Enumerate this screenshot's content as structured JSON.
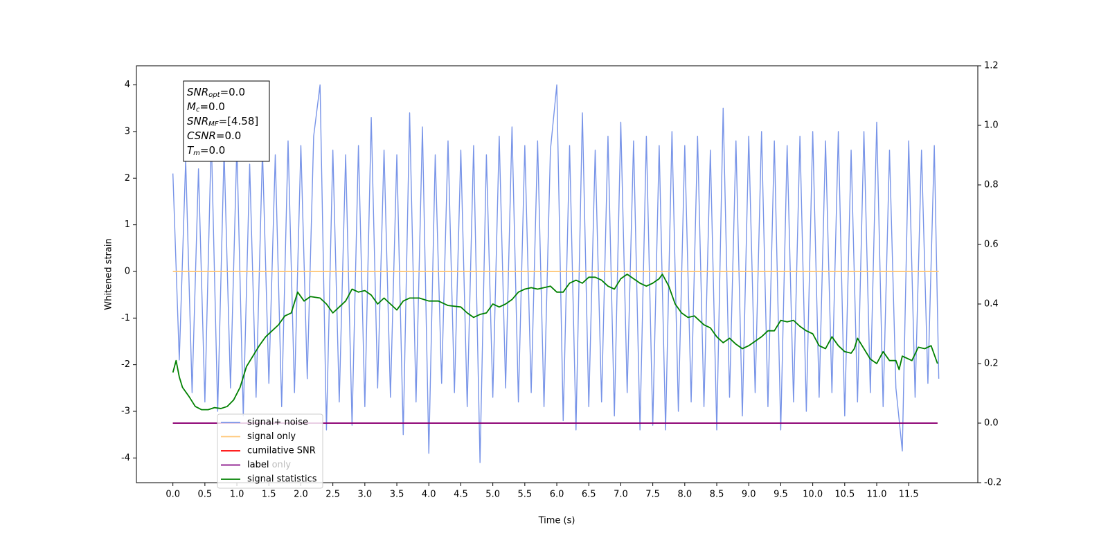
{
  "chart_data": {
    "type": "line",
    "xlabel": "Time (s)",
    "ylabel": "Whitened strain",
    "xlim": [
      -0.57,
      12.58
    ],
    "ylim": [
      -4.53,
      4.41
    ],
    "y2lim": [
      -0.2,
      1.2
    ],
    "xticks": [
      {
        "value": 0,
        "label": "0.0"
      },
      {
        "value": 0.5,
        "label": "0.5"
      },
      {
        "value": 1,
        "label": "1.0"
      },
      {
        "value": 1.5,
        "label": "1.5"
      },
      {
        "value": 2,
        "label": "2.0"
      },
      {
        "value": 2.5,
        "label": "2.5"
      },
      {
        "value": 3,
        "label": "3.0"
      },
      {
        "value": 3.5,
        "label": "3.5"
      },
      {
        "value": 4,
        "label": "4.0"
      },
      {
        "value": 4.5,
        "label": "4.5"
      },
      {
        "value": 5,
        "label": "5.0"
      },
      {
        "value": 5.5,
        "label": "5.5"
      },
      {
        "value": 6,
        "label": "6.0"
      },
      {
        "value": 6.5,
        "label": "6.5"
      },
      {
        "value": 7,
        "label": "7.0"
      },
      {
        "value": 7.5,
        "label": "7.5"
      },
      {
        "value": 8,
        "label": "8.0"
      },
      {
        "value": 8.5,
        "label": "8.5"
      },
      {
        "value": 9,
        "label": "9.0"
      },
      {
        "value": 9.5,
        "label": "9.5"
      },
      {
        "value": 10,
        "label": "10.0"
      },
      {
        "value": 10.5,
        "label": "10.5"
      },
      {
        "value": 11,
        "label": "11.0"
      },
      {
        "value": 11.5,
        "label": "11.5"
      }
    ],
    "yticks": [
      -4,
      -3,
      -2,
      -1,
      0,
      1,
      2,
      3,
      4
    ],
    "y2ticks": [
      -0.2,
      {
        "value": 0,
        "label": "0.0"
      },
      0.2,
      0.4,
      0.6,
      0.8,
      {
        "value": 1,
        "label": "1.0"
      },
      1.2
    ],
    "grid": false,
    "legend": "lower left",
    "legend_overlay_text": "label only",
    "annotation": [
      {
        "symbol": "SNR",
        "sub": "opt",
        "text": "=0.0"
      },
      {
        "symbol": "M",
        "sub": "c",
        "text": "=0.0"
      },
      {
        "symbol": "SNR",
        "sub": "MF",
        "text": "=[4.58]"
      },
      {
        "symbol": "CSNR",
        "text": "=0.0"
      },
      {
        "symbol": "T",
        "sub": "m",
        "text": "=0.0"
      }
    ],
    "series": [
      {
        "name": "signal+ noise",
        "color": "#7894e8",
        "axis": "y",
        "x": [
          0,
          0.1,
          0.2,
          0.3,
          0.4,
          0.5,
          0.6,
          0.7,
          0.8,
          0.9,
          1,
          1.1,
          1.2,
          1.3,
          1.4,
          1.5,
          1.6,
          1.7,
          1.8,
          1.9,
          2,
          2.1,
          2.2,
          2.3,
          2.4,
          2.5,
          2.6,
          2.7,
          2.8,
          2.9,
          3,
          3.1,
          3.2,
          3.3,
          3.4,
          3.5,
          3.6,
          3.7,
          3.8,
          3.9,
          4,
          4.1,
          4.2,
          4.3,
          4.4,
          4.5,
          4.6,
          4.7,
          4.8,
          4.9,
          5,
          5.1,
          5.2,
          5.3,
          5.4,
          5.5,
          5.6,
          5.7,
          5.8,
          5.9,
          6,
          6.1,
          6.2,
          6.3,
          6.4,
          6.5,
          6.6,
          6.7,
          6.8,
          6.9,
          7,
          7.1,
          7.2,
          7.3,
          7.4,
          7.5,
          7.6,
          7.7,
          7.8,
          7.9,
          8,
          8.1,
          8.2,
          8.3,
          8.4,
          8.5,
          8.6,
          8.7,
          8.8,
          8.9,
          9,
          9.1,
          9.2,
          9.3,
          9.4,
          9.5,
          9.6,
          9.7,
          9.8,
          9.9,
          10,
          10.1,
          10.2,
          10.3,
          10.4,
          10.5,
          10.6,
          10.7,
          10.8,
          10.9,
          11,
          11.1,
          11.2,
          11.3,
          11.4,
          11.5,
          11.6,
          11.7,
          11.8,
          11.9,
          11.97
        ],
        "values": [
          2.1,
          -1.9,
          2.4,
          -2.6,
          2.2,
          -2.8,
          2.9,
          -3.0,
          2.6,
          -2.5,
          2.7,
          -3.1,
          2.3,
          -2.7,
          2.6,
          -2.4,
          2.5,
          -2.9,
          2.8,
          -2.6,
          2.7,
          -2.3,
          2.9,
          4.0,
          -3.4,
          2.6,
          -2.8,
          2.5,
          -3.3,
          2.7,
          -2.9,
          3.3,
          -2.5,
          2.6,
          -2.7,
          2.5,
          -3.5,
          3.4,
          -2.8,
          3.1,
          -3.9,
          2.5,
          -2.4,
          2.8,
          -2.6,
          2.6,
          -2.9,
          2.7,
          -4.1,
          2.5,
          -2.7,
          2.9,
          -2.5,
          3.1,
          -2.8,
          2.7,
          -2.6,
          2.8,
          -2.9,
          2.6,
          4.0,
          -3.2,
          2.7,
          -3.4,
          3.4,
          -2.9,
          2.6,
          -2.8,
          2.9,
          -3.1,
          3.2,
          -2.6,
          2.8,
          -3.4,
          2.9,
          -3.3,
          2.7,
          -3.4,
          3.0,
          -3.0,
          2.7,
          -2.8,
          2.9,
          -2.9,
          2.6,
          -3.4,
          3.5,
          -2.7,
          2.8,
          -3.1,
          2.9,
          -2.6,
          3.0,
          -2.9,
          2.8,
          -3.4,
          2.7,
          -2.8,
          2.9,
          -3.0,
          3.0,
          -2.7,
          2.8,
          -2.6,
          3.0,
          -3.1,
          2.6,
          -2.8,
          3.0,
          -2.6,
          3.2,
          -2.9,
          2.6,
          -2.5,
          -3.85,
          2.8,
          -2.7,
          2.6,
          -2.4,
          2.7,
          -2.3
        ]
      },
      {
        "name": "signal only",
        "color": "#ffc87a",
        "axis": "y",
        "x": [
          0,
          11.97
        ],
        "values": [
          0,
          0
        ]
      },
      {
        "name": "cumilative SNR",
        "color": "#ff0000",
        "axis": "y2",
        "x": [
          0,
          11.95
        ],
        "values": [
          0,
          0
        ]
      },
      {
        "name": "label",
        "color": "#800080",
        "axis": "y2",
        "x": [
          0,
          11.95
        ],
        "values": [
          0,
          0
        ]
      },
      {
        "name": "signal statistics",
        "color": "#008000",
        "axis": "y2",
        "x": [
          0,
          0.05,
          0.1,
          0.15,
          0.25,
          0.35,
          0.45,
          0.55,
          0.65,
          0.75,
          0.85,
          0.95,
          1.05,
          1.15,
          1.25,
          1.35,
          1.45,
          1.55,
          1.65,
          1.75,
          1.85,
          1.95,
          2.05,
          2.15,
          2.3,
          2.4,
          2.5,
          2.6,
          2.7,
          2.8,
          2.9,
          3.0,
          3.1,
          3.2,
          3.3,
          3.4,
          3.5,
          3.6,
          3.7,
          3.85,
          4.0,
          4.15,
          4.3,
          4.5,
          4.6,
          4.7,
          4.8,
          4.9,
          5.0,
          5.1,
          5.2,
          5.3,
          5.4,
          5.5,
          5.6,
          5.7,
          5.8,
          5.9,
          6.0,
          6.1,
          6.2,
          6.3,
          6.4,
          6.5,
          6.6,
          6.7,
          6.8,
          6.9,
          7.0,
          7.1,
          7.2,
          7.3,
          7.4,
          7.5,
          7.6,
          7.65,
          7.75,
          7.85,
          7.95,
          8.05,
          8.15,
          8.3,
          8.4,
          8.5,
          8.6,
          8.7,
          8.8,
          8.9,
          9.0,
          9.1,
          9.2,
          9.3,
          9.4,
          9.5,
          9.6,
          9.7,
          9.8,
          9.9,
          10.0,
          10.1,
          10.2,
          10.3,
          10.4,
          10.5,
          10.6,
          10.65,
          10.7,
          10.8,
          10.9,
          11.0,
          11.1,
          11.2,
          11.3,
          11.35,
          11.4,
          11.55,
          11.65,
          11.75,
          11.85,
          11.95
        ],
        "values": [
          0.17,
          0.21,
          0.155,
          0.12,
          0.09,
          0.056,
          0.045,
          0.045,
          0.052,
          0.049,
          0.056,
          0.078,
          0.12,
          0.19,
          0.225,
          0.26,
          0.29,
          0.31,
          0.33,
          0.36,
          0.37,
          0.44,
          0.41,
          0.425,
          0.42,
          0.4,
          0.37,
          0.39,
          0.41,
          0.45,
          0.44,
          0.445,
          0.43,
          0.4,
          0.42,
          0.4,
          0.38,
          0.41,
          0.42,
          0.42,
          0.41,
          0.41,
          0.395,
          0.39,
          0.37,
          0.355,
          0.365,
          0.37,
          0.4,
          0.39,
          0.4,
          0.415,
          0.44,
          0.45,
          0.455,
          0.45,
          0.455,
          0.46,
          0.44,
          0.44,
          0.47,
          0.48,
          0.47,
          0.49,
          0.49,
          0.48,
          0.46,
          0.45,
          0.485,
          0.5,
          0.485,
          0.47,
          0.46,
          0.47,
          0.485,
          0.5,
          0.46,
          0.4,
          0.37,
          0.355,
          0.36,
          0.33,
          0.32,
          0.29,
          0.27,
          0.285,
          0.265,
          0.25,
          0.26,
          0.275,
          0.29,
          0.31,
          0.31,
          0.345,
          0.34,
          0.345,
          0.325,
          0.31,
          0.3,
          0.26,
          0.25,
          0.29,
          0.26,
          0.24,
          0.235,
          0.25,
          0.285,
          0.25,
          0.215,
          0.2,
          0.24,
          0.21,
          0.21,
          0.18,
          0.225,
          0.21,
          0.255,
          0.25,
          0.26,
          0.2
        ]
      }
    ]
  }
}
